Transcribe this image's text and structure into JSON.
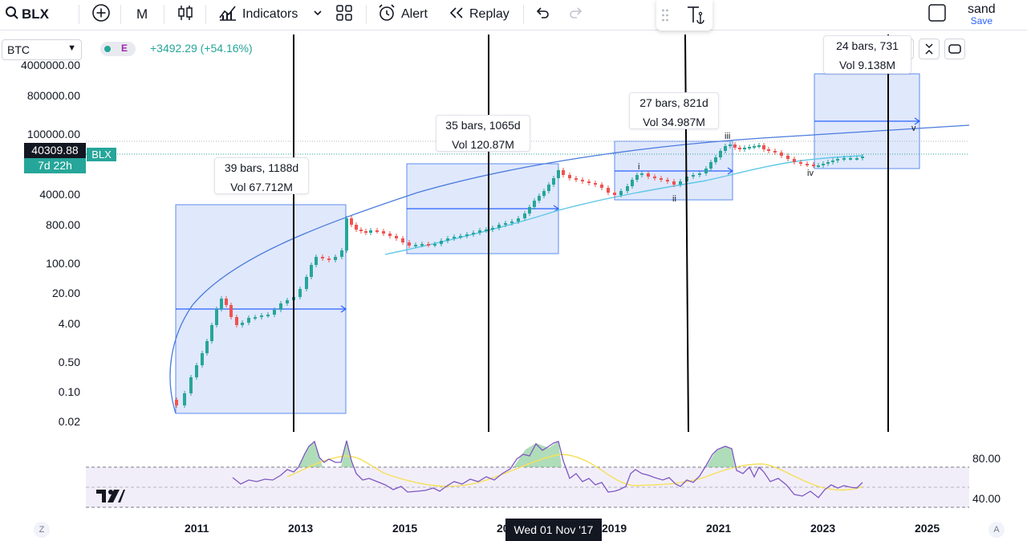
{
  "toolbar": {
    "symbol": "BLX",
    "interval": "M",
    "indicators_label": "Indicators",
    "alert_label": "Alert",
    "replay_label": "Replay",
    "account_name": "sand",
    "save_label": "Save"
  },
  "legend": {
    "selected_symbol": "BTC",
    "badge_letter": "E",
    "change_text": "+3492.29 (+54.16%)"
  },
  "price_axis": {
    "labels": [
      "4000000.00",
      "800000.00",
      "100000.00",
      "4000.00",
      "800.00",
      "100.00",
      "20.00",
      "4.00",
      "0.50",
      "0.10",
      "0.02"
    ],
    "current_price": "40309.88",
    "countdown": "7d 22h",
    "symbol_tag": "BLX"
  },
  "rsi_axis": {
    "labels": [
      "80.00",
      "40.00"
    ]
  },
  "time_axis": {
    "labels": [
      "2011",
      "2013",
      "2015",
      "2017",
      "2019",
      "2021",
      "2023",
      "2025"
    ],
    "crosshair_date": "Wed 01 Nov '17"
  },
  "measurements": [
    {
      "bars": "39 bars, 1188d",
      "vol": "Vol 67.712M"
    },
    {
      "bars": "35 bars, 1065d",
      "vol": "Vol 120.87M"
    },
    {
      "bars": "27 bars, 821d",
      "vol": "Vol 34.987M"
    },
    {
      "bars": "24 bars, 731",
      "vol": "Vol 9.138M"
    }
  ],
  "wave_labels": [
    "i",
    "ii",
    "iii",
    "iv",
    "v"
  ],
  "colors": {
    "up": "#26a69a",
    "down": "#ef5350",
    "accent": "#2962ff",
    "range_fill": "#dbe4fb",
    "rsi_line": "#7e57c2",
    "rsi_ma": "#f5e05a",
    "ma_line": "#5ec8e8"
  },
  "chart_data": {
    "type": "candlestick",
    "symbol": "BLX",
    "interval": "M",
    "y_scale": "log",
    "price_ticks": [
      4000000,
      800000,
      100000,
      4000,
      800,
      100,
      20,
      4,
      0.5,
      0.1,
      0.02
    ],
    "x_ticks": [
      2011,
      2013,
      2015,
      2017,
      2019,
      2021,
      2023,
      2025
    ],
    "last_price": 40309.88,
    "indicator": {
      "name": "RSI",
      "levels": [
        80,
        40
      ]
    }
  }
}
